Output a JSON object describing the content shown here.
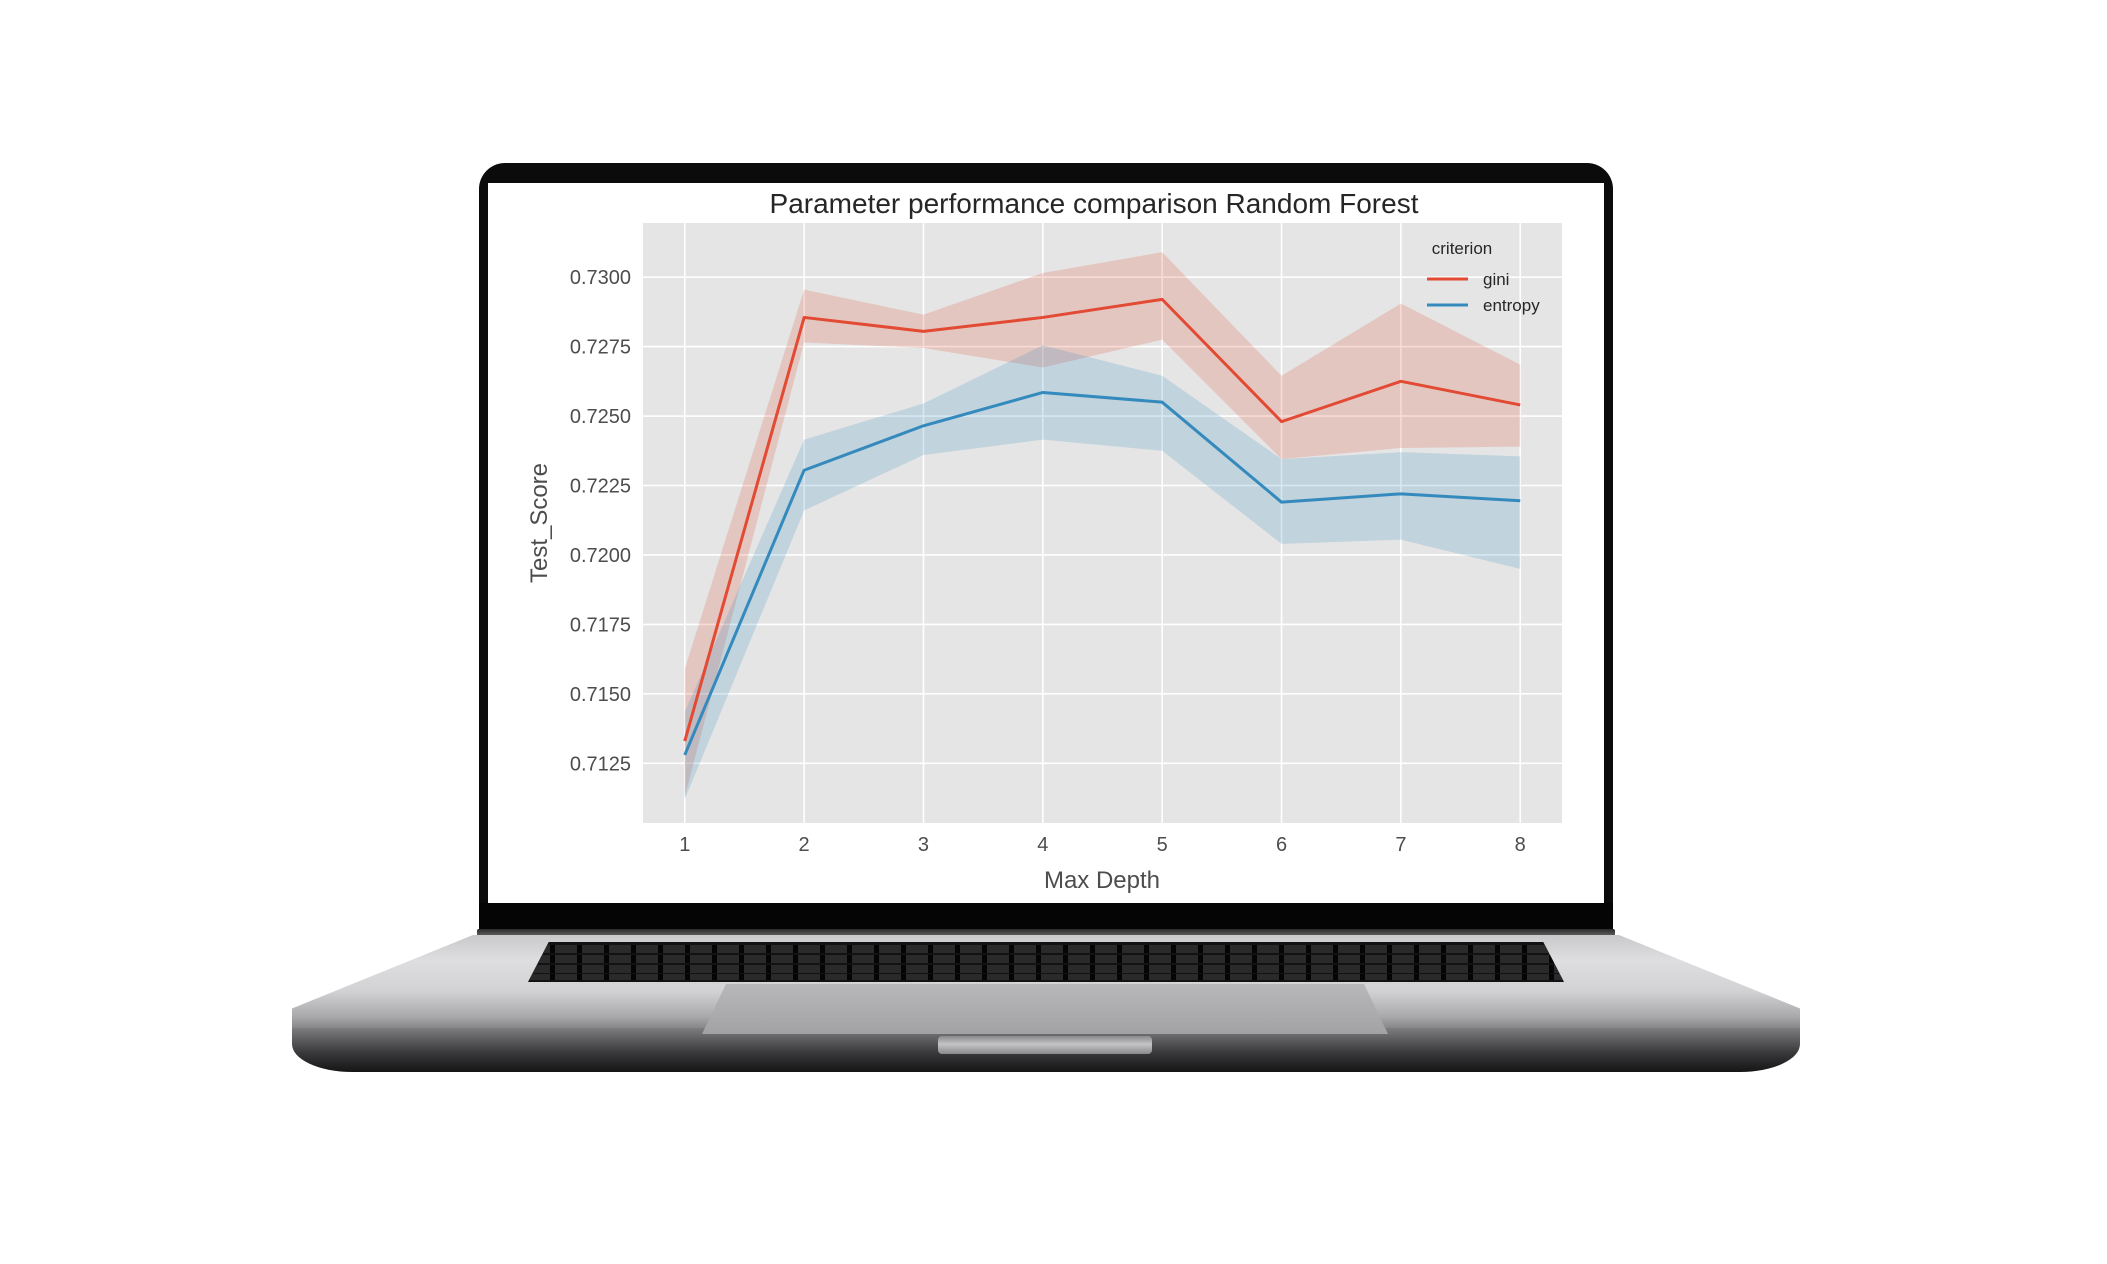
{
  "chart_data": {
    "type": "line",
    "title": "Parameter performance comparison Random Forest",
    "xlabel": "Max Depth",
    "ylabel": "Test_Score",
    "x": [
      1,
      2,
      3,
      4,
      5,
      6,
      7,
      8
    ],
    "xlim": [
      0.65,
      8.35
    ],
    "ylim": [
      0.71035,
      0.73195
    ],
    "yticks": [
      0.7125,
      0.715,
      0.7175,
      0.72,
      0.7225,
      0.725,
      0.7275,
      0.73
    ],
    "ytick_labels": [
      "0.7125",
      "0.7150",
      "0.7175",
      "0.7200",
      "0.7225",
      "0.7250",
      "0.7275",
      "0.7300"
    ],
    "xtick_labels": [
      "1",
      "2",
      "3",
      "4",
      "5",
      "6",
      "7",
      "8"
    ],
    "grid": true,
    "legend": {
      "title": "criterion",
      "position": "top-right"
    },
    "series": [
      {
        "name": "gini",
        "color": "#e24a33",
        "values": [
          0.7133,
          0.72855,
          0.72805,
          0.72855,
          0.7292,
          0.7248,
          0.72625,
          0.7254
        ],
        "lower": [
          0.7113,
          0.72765,
          0.72745,
          0.72675,
          0.72775,
          0.72345,
          0.72385,
          0.7239
        ],
        "upper": [
          0.7159,
          0.72955,
          0.72865,
          0.73015,
          0.7309,
          0.72645,
          0.72905,
          0.72685
        ]
      },
      {
        "name": "entropy",
        "color": "#348abd",
        "values": [
          0.7128,
          0.72305,
          0.72465,
          0.72585,
          0.7255,
          0.7219,
          0.7222,
          0.72195
        ],
        "lower": [
          0.7112,
          0.7216,
          0.7236,
          0.72415,
          0.72375,
          0.7204,
          0.72055,
          0.7195
        ],
        "upper": [
          0.71435,
          0.72415,
          0.72545,
          0.72755,
          0.72645,
          0.72345,
          0.7237,
          0.72355
        ]
      }
    ]
  }
}
